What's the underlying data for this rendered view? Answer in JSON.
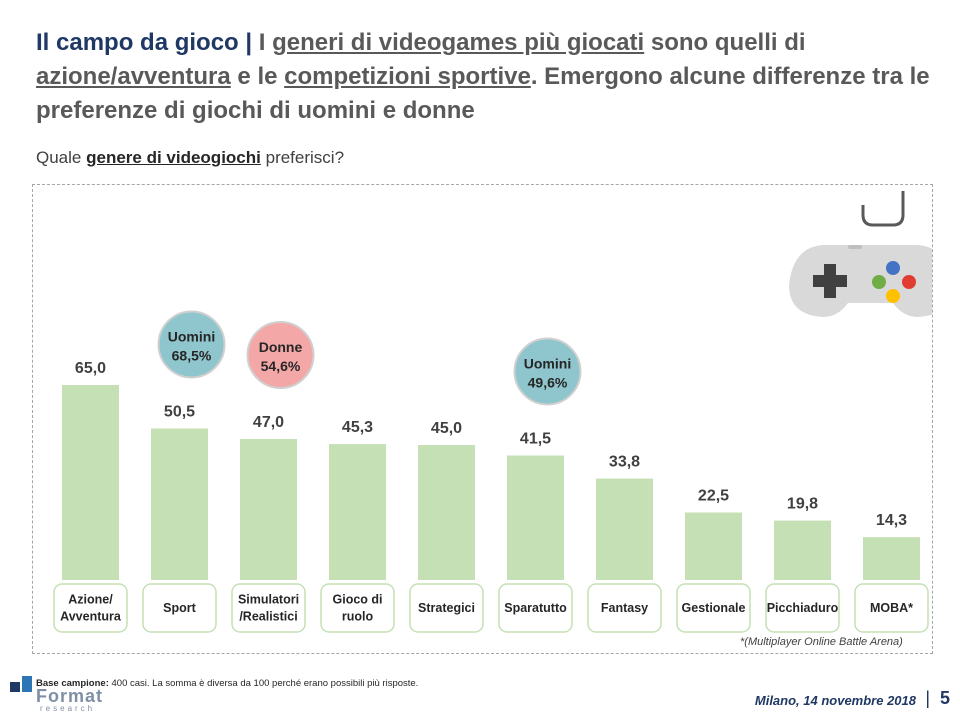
{
  "slide": {
    "title_main": "Il campo da gioco",
    "title_sep": "|",
    "title_p1": "I",
    "title_u1": "generi di videogames più giocati",
    "title_p2": "sono quelli di",
    "title_u2": "azione/avventura",
    "title_p3": "e le",
    "title_u3": "competizioni sportive",
    "title_p4": ". Emergono alcune differenze tra le preferenze di giochi di uomini e donne",
    "question_pre": "Quale",
    "question_bold": "genere di videogiochi",
    "question_post": "preferisci?",
    "footnote": "*(Multiplayer Online Battle Arena)",
    "base_label": "Base campione:",
    "base_text": "400 casi. La somma è diversa da 100 perché erano possibili più risposte.",
    "logo_word": "Format",
    "logo_sub": "research",
    "footer_date": "Milano, 14 novembre 2018",
    "page_sep": "|",
    "page_number": "5"
  },
  "chart_data": {
    "type": "bar",
    "categories": [
      "Azione/ Avventura",
      "Sport",
      "Simulatori /Realistici",
      "Gioco di ruolo",
      "Strategici",
      "Sparatutto",
      "Fantasy",
      "Gestionale",
      "Picchiaduro",
      "MOBA*"
    ],
    "values": [
      65.0,
      50.5,
      47.0,
      45.3,
      45.0,
      41.5,
      33.8,
      22.5,
      19.8,
      14.3
    ],
    "value_labels": [
      "65,0",
      "50,5",
      "47,0",
      "45,3",
      "45,0",
      "41,5",
      "33,8",
      "22,5",
      "19,8",
      "14,3"
    ],
    "ylim": [
      0,
      100
    ],
    "bar_color": "#c5e0b4",
    "callouts": [
      {
        "category_index": 1,
        "label": "Uomini",
        "value": "68,5%",
        "color": "#8fc5cc"
      },
      {
        "category_index": 2,
        "label": "Donne",
        "value": "54,6%",
        "color": "#f4a7a7"
      },
      {
        "category_index": 5,
        "label": "Uomini",
        "value": "49,6%",
        "color": "#8fc5cc"
      }
    ]
  }
}
